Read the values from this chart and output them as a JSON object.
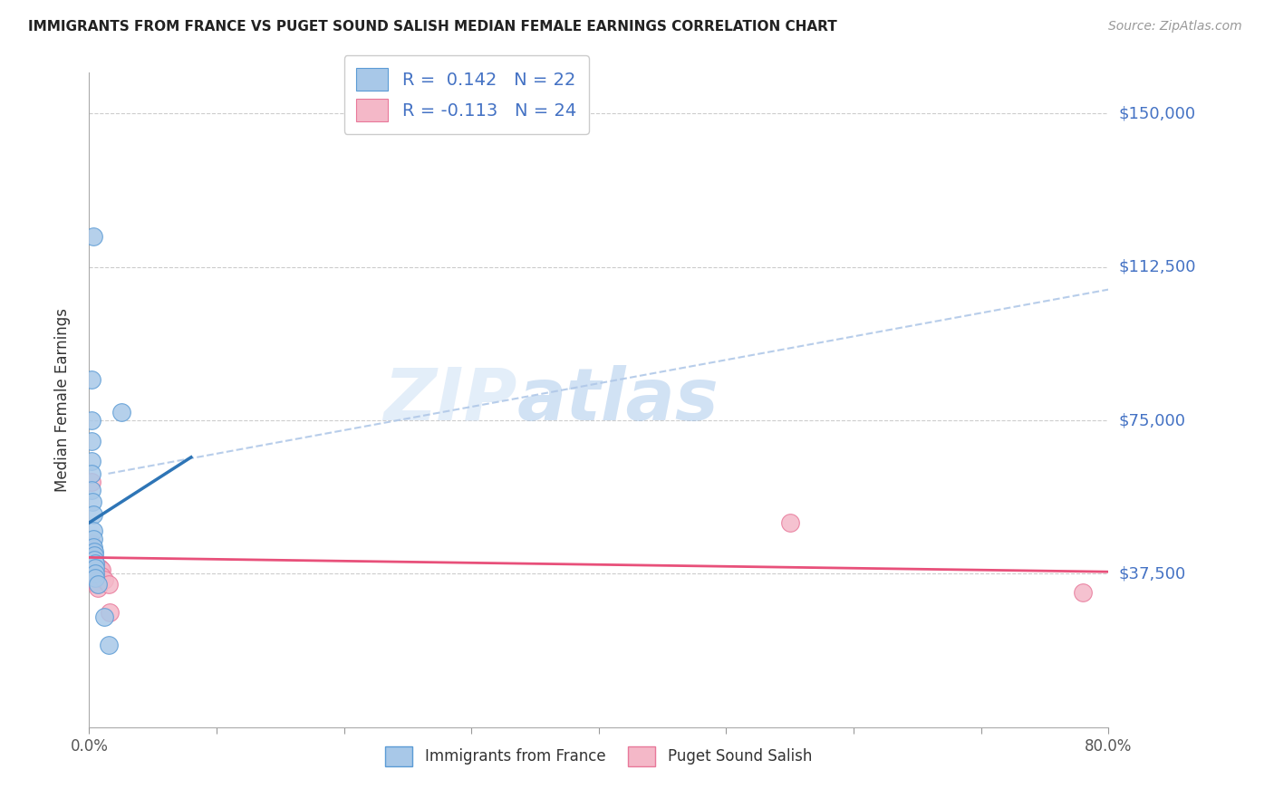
{
  "title": "IMMIGRANTS FROM FRANCE VS PUGET SOUND SALISH MEDIAN FEMALE EARNINGS CORRELATION CHART",
  "source": "Source: ZipAtlas.com",
  "ylabel": "Median Female Earnings",
  "xlim": [
    0,
    0.8
  ],
  "ylim": [
    0,
    160000
  ],
  "yticks": [
    37500,
    75000,
    112500,
    150000
  ],
  "ytick_labels": [
    "$37,500",
    "$75,000",
    "$112,500",
    "$150,000"
  ],
  "watermark": "ZIPatlas",
  "france_color": "#a8c8e8",
  "france_edge_color": "#5b9bd5",
  "salish_color": "#f4b8c8",
  "salish_edge_color": "#e8789a",
  "france_line_color": "#2e75b6",
  "salish_line_color": "#e8507a",
  "dash_line_color": "#b0c8e8",
  "bg_color": "#ffffff",
  "grid_color": "#cccccc",
  "right_label_color": "#4472c4",
  "france_line": [
    [
      0.0,
      50000
    ],
    [
      0.08,
      66000
    ]
  ],
  "salish_line": [
    [
      0.0,
      41500
    ],
    [
      0.8,
      38000
    ]
  ],
  "dash_line": [
    [
      0.015,
      62000
    ],
    [
      0.8,
      107000
    ]
  ],
  "france_points": [
    [
      0.0035,
      120000
    ],
    [
      0.0015,
      85000
    ],
    [
      0.0015,
      75000
    ],
    [
      0.0018,
      70000
    ],
    [
      0.002,
      65000
    ],
    [
      0.002,
      62000
    ],
    [
      0.002,
      58000
    ],
    [
      0.0025,
      55000
    ],
    [
      0.003,
      52000
    ],
    [
      0.003,
      48000
    ],
    [
      0.003,
      46000
    ],
    [
      0.003,
      44000
    ],
    [
      0.004,
      43000
    ],
    [
      0.004,
      42000
    ],
    [
      0.004,
      41000
    ],
    [
      0.0045,
      40000
    ],
    [
      0.005,
      39000
    ],
    [
      0.005,
      37500
    ],
    [
      0.005,
      36500
    ],
    [
      0.007,
      35000
    ],
    [
      0.025,
      77000
    ],
    [
      0.012,
      27000
    ],
    [
      0.015,
      20000
    ]
  ],
  "salish_points": [
    [
      0.0015,
      60000
    ],
    [
      0.002,
      45000
    ],
    [
      0.002,
      43000
    ],
    [
      0.003,
      42000
    ],
    [
      0.003,
      40000
    ],
    [
      0.003,
      39000
    ],
    [
      0.003,
      38500
    ],
    [
      0.004,
      38000
    ],
    [
      0.004,
      37500
    ],
    [
      0.004,
      37000
    ],
    [
      0.005,
      36500
    ],
    [
      0.005,
      36000
    ],
    [
      0.005,
      35500
    ],
    [
      0.006,
      35000
    ],
    [
      0.007,
      35000
    ],
    [
      0.007,
      34000
    ],
    [
      0.008,
      39000
    ],
    [
      0.01,
      38500
    ],
    [
      0.01,
      37000
    ],
    [
      0.012,
      36000
    ],
    [
      0.015,
      35000
    ],
    [
      0.016,
      28000
    ],
    [
      0.55,
      50000
    ],
    [
      0.78,
      33000
    ]
  ]
}
